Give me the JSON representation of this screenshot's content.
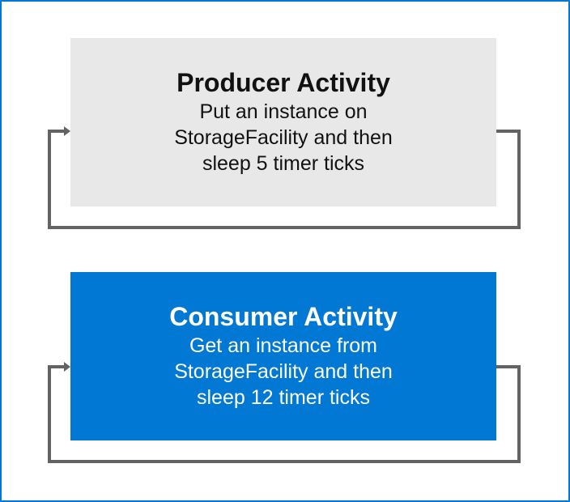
{
  "colors": {
    "frame_border": "#0078d4",
    "producer_fill": "#e8e8e8",
    "consumer_fill": "#0078d4",
    "connector": "#636363"
  },
  "producer": {
    "title": "Producer Activity",
    "lines": [
      "Put an instance on",
      "StorageFacility and then",
      "sleep 5 timer ticks"
    ]
  },
  "consumer": {
    "title": "Consumer Activity",
    "lines": [
      "Get an instance from",
      "StorageFacility and then",
      "sleep 12 timer ticks"
    ]
  }
}
